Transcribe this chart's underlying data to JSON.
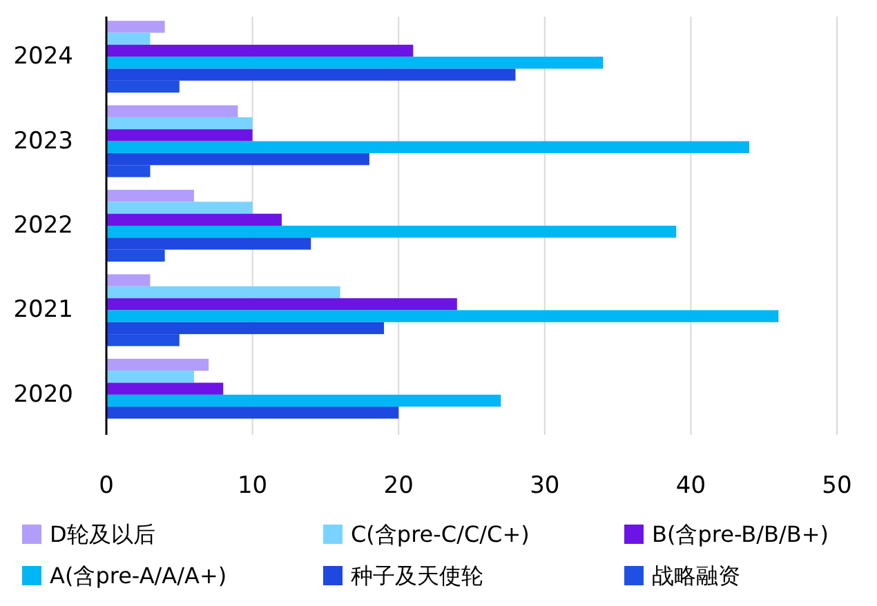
{
  "chart_data": {
    "type": "bar",
    "orientation": "horizontal",
    "categories": [
      "2024",
      "2023",
      "2022",
      "2021",
      "2020"
    ],
    "series": [
      {
        "name": "D轮及以后",
        "color": "#b39dfa",
        "values": [
          4,
          9,
          6,
          3,
          7
        ]
      },
      {
        "name": "C(含pre-C/C/C+)",
        "color": "#7ad3ff",
        "values": [
          3,
          10,
          10,
          16,
          6
        ]
      },
      {
        "name": "B(含pre-B/B/B+)",
        "color": "#6c14e5",
        "values": [
          21,
          10,
          12,
          24,
          8
        ]
      },
      {
        "name": "A(含pre-A/A/A+)",
        "color": "#00b6f5",
        "values": [
          34,
          44,
          39,
          46,
          27
        ]
      },
      {
        "name": "种子及天使轮",
        "color": "#1f48e0",
        "values": [
          28,
          18,
          14,
          19,
          20
        ]
      },
      {
        "name": "战略融资",
        "color": "#1f4fe3",
        "values": [
          5,
          3,
          4,
          5,
          null
        ]
      }
    ],
    "xlim": [
      0,
      50
    ],
    "xticks": [
      0,
      10,
      20,
      30,
      40,
      50
    ],
    "grid": "x",
    "legend": "bottom"
  }
}
